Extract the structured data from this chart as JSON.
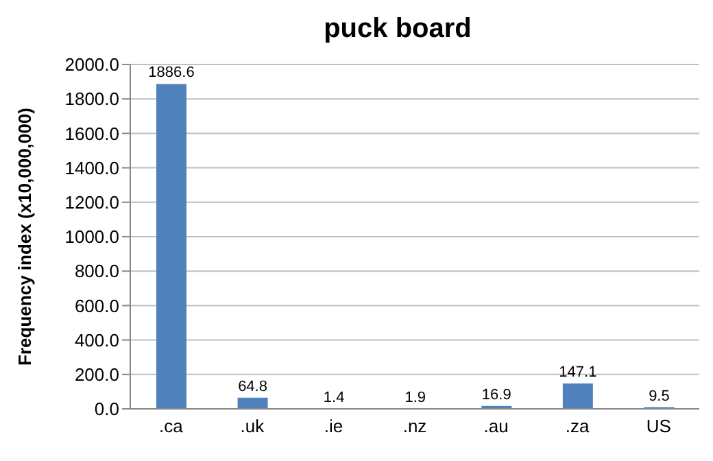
{
  "chart_data": {
    "type": "bar",
    "title": "puck board",
    "ylabel": "Frequency index (x10,000,000)",
    "categories": [
      ".ca",
      ".uk",
      ".ie",
      ".nz",
      ".au",
      ".za",
      "US"
    ],
    "values": [
      1886.6,
      64.8,
      1.4,
      1.9,
      16.9,
      147.1,
      9.5
    ],
    "color": "#4f81bd",
    "ylim": [
      0,
      2000
    ],
    "yticks": [
      {
        "value": 0,
        "label": "0.0"
      },
      {
        "value": 200,
        "label": "200.0"
      },
      {
        "value": 400,
        "label": "400.0"
      },
      {
        "value": 600,
        "label": "600.0"
      },
      {
        "value": 800,
        "label": "800.0"
      },
      {
        "value": 1000,
        "label": "1000.0"
      },
      {
        "value": 1200,
        "label": "1200.0"
      },
      {
        "value": 1400,
        "label": "1400.0"
      },
      {
        "value": 1600,
        "label": "1600.0"
      },
      {
        "value": 1800,
        "label": "1800.0"
      },
      {
        "value": 2000,
        "label": "2000.0"
      }
    ],
    "grid": "y",
    "data_labels": true
  }
}
